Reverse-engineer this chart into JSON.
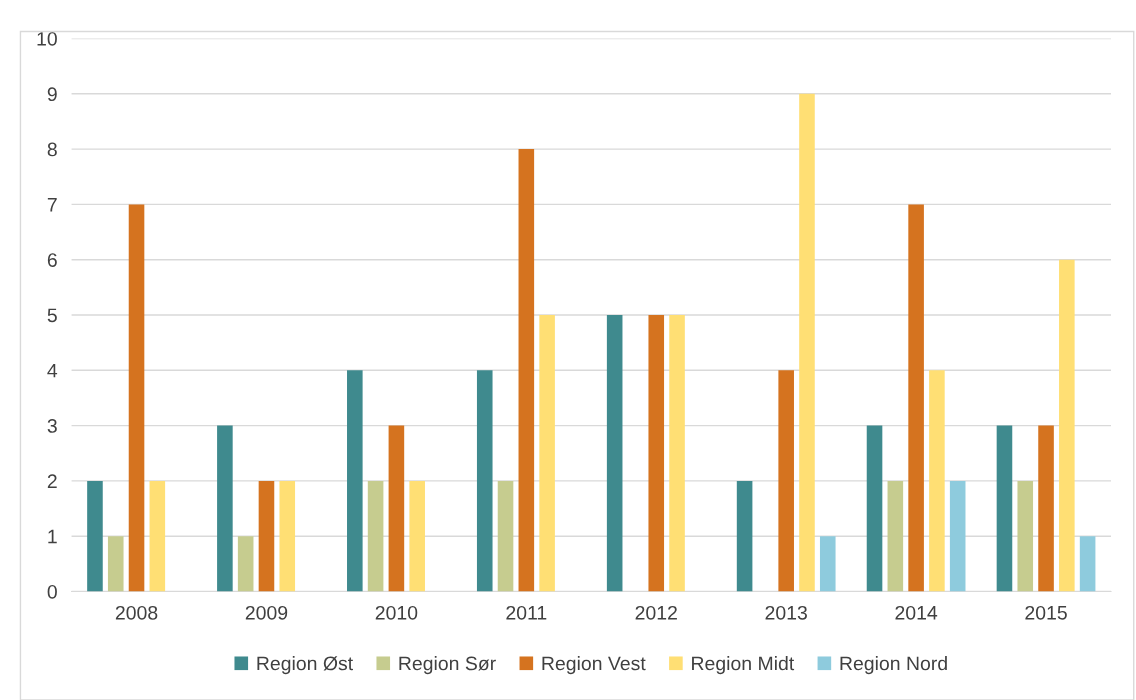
{
  "chart_data": {
    "type": "bar",
    "categories": [
      "2008",
      "2009",
      "2010",
      "2011",
      "2012",
      "2013",
      "2014",
      "2015"
    ],
    "series": [
      {
        "name": "Region Øst",
        "color": "#3f8a8e",
        "values": [
          2,
          3,
          4,
          4,
          5,
          2,
          3,
          3
        ]
      },
      {
        "name": "Region Sør",
        "color": "#c6cc8f",
        "values": [
          1,
          1,
          2,
          2,
          0,
          0,
          2,
          2
        ]
      },
      {
        "name": "Region Vest",
        "color": "#d5731f",
        "values": [
          7,
          2,
          3,
          8,
          5,
          4,
          7,
          3
        ]
      },
      {
        "name": "Region Midt",
        "color": "#ffdf74",
        "values": [
          2,
          2,
          2,
          5,
          5,
          9,
          4,
          6
        ]
      },
      {
        "name": "Region Nord",
        "color": "#8ecbdd",
        "values": [
          0,
          0,
          0,
          0,
          0,
          1,
          2,
          1
        ]
      }
    ],
    "ylim": [
      0,
      10
    ],
    "yticks": [
      0,
      1,
      2,
      3,
      4,
      5,
      6,
      7,
      8,
      9,
      10
    ],
    "grid": "y",
    "legend": "bottom"
  }
}
